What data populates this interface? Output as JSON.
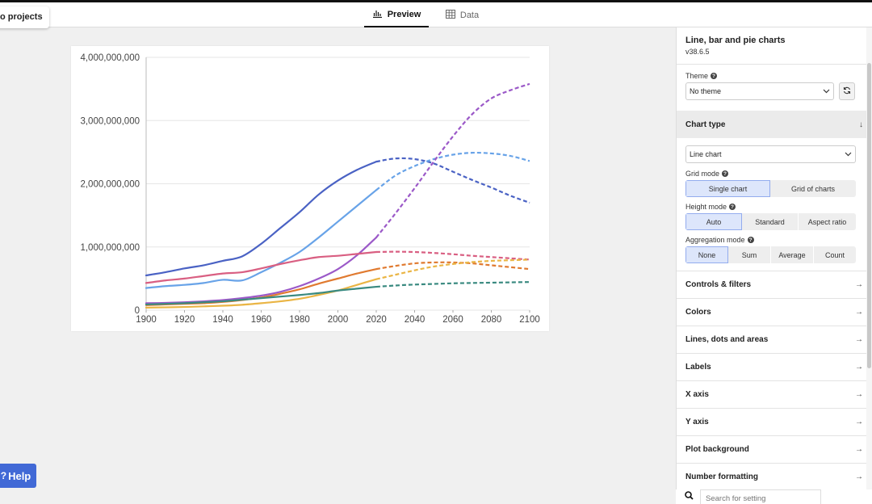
{
  "header": {
    "projects_label": "o projects",
    "tabs": [
      {
        "label": "Preview",
        "icon": "bar-chart-icon",
        "active": true
      },
      {
        "label": "Data",
        "icon": "table-icon",
        "active": false
      }
    ]
  },
  "help_label": "Help",
  "panel": {
    "title": "Line, bar and pie charts",
    "version": "v38.6.5",
    "theme_label": "Theme",
    "theme_value": "No theme",
    "chart_type_header": "Chart type",
    "chart_type_value": "Line chart",
    "grid_mode_label": "Grid mode",
    "grid_mode_options": [
      "Single chart",
      "Grid of charts"
    ],
    "grid_mode_selected": "Single chart",
    "height_mode_label": "Height mode",
    "height_mode_options": [
      "Auto",
      "Standard",
      "Aspect ratio"
    ],
    "height_mode_selected": "Auto",
    "aggregation_label": "Aggregation mode",
    "aggregation_options": [
      "None",
      "Sum",
      "Average",
      "Count"
    ],
    "aggregation_selected": "None",
    "sections": [
      "Controls & filters",
      "Colors",
      "Lines, dots and areas",
      "Labels",
      "X axis",
      "Y axis",
      "Plot background",
      "Number formatting"
    ],
    "search_placeholder": "Search for setting"
  },
  "chart_data": {
    "type": "line",
    "title": "",
    "xlabel": "",
    "ylabel": "",
    "xlim": [
      1900,
      2100
    ],
    "ylim": [
      0,
      4000000000
    ],
    "x_ticks": [
      "1900",
      "1920",
      "1940",
      "1960",
      "1980",
      "2000",
      "2020",
      "2040",
      "2060",
      "2080",
      "2100"
    ],
    "y_ticks": [
      "0",
      "1,000,000,000",
      "2,000,000,000",
      "3,000,000,000",
      "4,000,000,000"
    ],
    "grid": "horizontal",
    "legend": "none",
    "projection_start": 2020,
    "projection_style": "dashed",
    "series": [
      {
        "color": "#4a62c4",
        "x": [
          1900,
          1910,
          1920,
          1930,
          1940,
          1950,
          1960,
          1970,
          1980,
          1990,
          2000,
          2010,
          2020,
          2030,
          2040,
          2050,
          2060,
          2070,
          2080,
          2090,
          2100
        ],
        "values": [
          550000000,
          600000000,
          660000000,
          710000000,
          780000000,
          850000000,
          1050000000,
          1300000000,
          1550000000,
          1830000000,
          2050000000,
          2220000000,
          2350000000,
          2400000000,
          2390000000,
          2320000000,
          2190000000,
          2060000000,
          1940000000,
          1810000000,
          1700000000
        ]
      },
      {
        "color": "#68a3e8",
        "x": [
          1900,
          1910,
          1920,
          1930,
          1940,
          1950,
          1960,
          1970,
          1980,
          1990,
          2000,
          2010,
          2020,
          2030,
          2040,
          2050,
          2060,
          2070,
          2080,
          2090,
          2100
        ],
        "values": [
          350000000,
          380000000,
          400000000,
          430000000,
          480000000,
          470000000,
          600000000,
          750000000,
          920000000,
          1150000000,
          1400000000,
          1650000000,
          1900000000,
          2130000000,
          2280000000,
          2390000000,
          2460000000,
          2490000000,
          2480000000,
          2440000000,
          2360000000
        ]
      },
      {
        "color": "#9b59c8",
        "x": [
          1900,
          1910,
          1920,
          1930,
          1940,
          1950,
          1960,
          1970,
          1980,
          1990,
          2000,
          2010,
          2020,
          2030,
          2040,
          2050,
          2060,
          2070,
          2080,
          2090,
          2100
        ],
        "values": [
          110000000,
          115000000,
          125000000,
          140000000,
          160000000,
          190000000,
          230000000,
          290000000,
          380000000,
          500000000,
          650000000,
          870000000,
          1150000000,
          1530000000,
          1930000000,
          2350000000,
          2750000000,
          3100000000,
          3350000000,
          3480000000,
          3580000000
        ]
      },
      {
        "color": "#d95f82",
        "x": [
          1900,
          1910,
          1920,
          1930,
          1940,
          1950,
          1960,
          1970,
          1980,
          1990,
          2000,
          2010,
          2020,
          2030,
          2040,
          2050,
          2060,
          2070,
          2080,
          2090,
          2100
        ],
        "values": [
          430000000,
          470000000,
          500000000,
          540000000,
          580000000,
          600000000,
          660000000,
          730000000,
          790000000,
          840000000,
          860000000,
          890000000,
          920000000,
          925000000,
          920000000,
          905000000,
          885000000,
          860000000,
          840000000,
          820000000,
          800000000
        ]
      },
      {
        "color": "#e07a30",
        "x": [
          1900,
          1910,
          1920,
          1930,
          1940,
          1950,
          1960,
          1970,
          1980,
          1990,
          2000,
          2010,
          2020,
          2030,
          2040,
          2050,
          2060,
          2070,
          2080,
          2090,
          2100
        ],
        "values": [
          80000000,
          90000000,
          100000000,
          110000000,
          130000000,
          160000000,
          200000000,
          260000000,
          330000000,
          420000000,
          500000000,
          580000000,
          650000000,
          700000000,
          740000000,
          755000000,
          755000000,
          740000000,
          710000000,
          680000000,
          650000000
        ]
      },
      {
        "color": "#eab545",
        "x": [
          1900,
          1910,
          1920,
          1930,
          1940,
          1950,
          1960,
          1970,
          1980,
          1990,
          2000,
          2010,
          2020,
          2030,
          2040,
          2050,
          2060,
          2070,
          2080,
          2090,
          2100
        ],
        "values": [
          40000000,
          45000000,
          50000000,
          60000000,
          70000000,
          85000000,
          110000000,
          140000000,
          180000000,
          240000000,
          310000000,
          400000000,
          490000000,
          560000000,
          630000000,
          690000000,
          730000000,
          760000000,
          780000000,
          790000000,
          800000000
        ]
      },
      {
        "color": "#3a8a80",
        "x": [
          1900,
          1910,
          1920,
          1930,
          1940,
          1950,
          1960,
          1970,
          1980,
          1990,
          2000,
          2010,
          2020,
          2030,
          2040,
          2050,
          2060,
          2070,
          2080,
          2090,
          2100
        ],
        "values": [
          90000000,
          100000000,
          110000000,
          125000000,
          140000000,
          165000000,
          190000000,
          215000000,
          240000000,
          270000000,
          310000000,
          340000000,
          370000000,
          390000000,
          405000000,
          415000000,
          425000000,
          430000000,
          435000000,
          440000000,
          445000000
        ]
      }
    ]
  }
}
